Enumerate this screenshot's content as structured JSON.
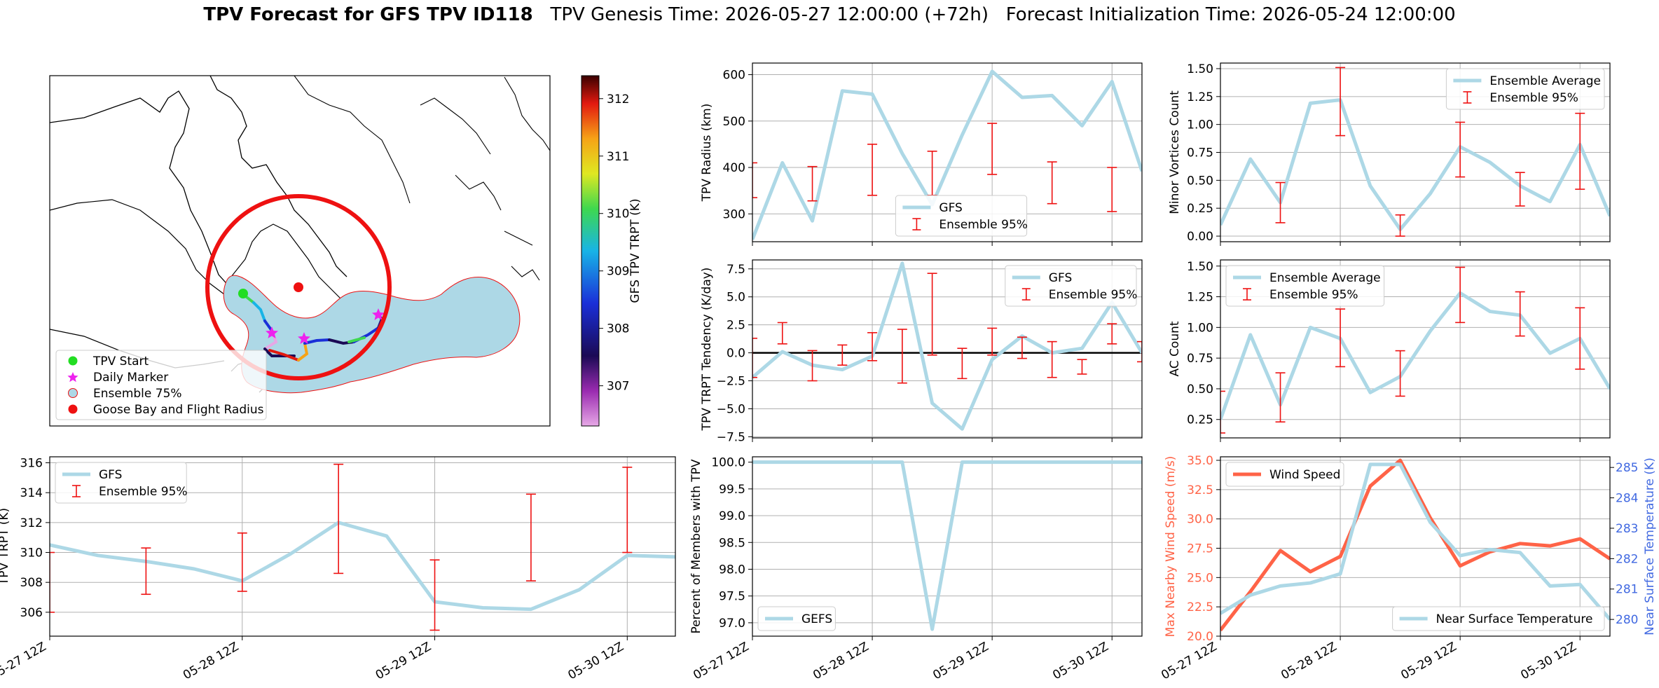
{
  "title": {
    "bold": "TPV Forecast for GFS TPV ID118",
    "genesis": "TPV Genesis Time: 2026-05-27 12:00:00 (+72h)",
    "init": "Forecast Initialization Time: 2026-05-24 12:00:00"
  },
  "map": {
    "legend": [
      "TPV Start",
      "Daily Marker",
      "Ensemble 75%",
      "Goose Bay and Flight Radius"
    ],
    "colorbar": {
      "label": "GFS TPV TRPT (K)",
      "ticks": [
        "307",
        "308",
        "309",
        "310",
        "311",
        "312"
      ],
      "range": [
        306.3,
        312.4
      ]
    },
    "colors": {
      "start": "#22dd22",
      "marker": "#ee22ee",
      "ensemble": "#add8e6",
      "radius": "#ee1111"
    }
  },
  "x_ticks": [
    "05-27 12Z",
    "05-28 12Z",
    "05-29 12Z",
    "05-30 12Z"
  ],
  "chart_data": [
    {
      "id": "radius",
      "type": "line",
      "ylabel": "TPV Radius (km)",
      "ylim": [
        240,
        625
      ],
      "yticks": [
        "300",
        "400",
        "500",
        "600"
      ],
      "x": [
        0,
        0.25,
        0.5,
        0.75,
        1,
        1.25,
        1.5,
        1.75,
        2,
        2.25,
        2.5,
        2.75,
        3,
        3.25
      ],
      "series": [
        {
          "name": "GFS",
          "color": "#add8e6",
          "values": [
            245,
            410,
            285,
            565,
            558,
            430,
            320,
            470,
            607,
            551,
            555,
            490,
            585,
            392
          ]
        }
      ],
      "errorbars": {
        "name": "Ensemble 95%",
        "color": "#ee1111",
        "x": [
          0,
          0.25,
          0.5,
          1,
          1.5,
          2,
          2.5,
          3
        ],
        "low": [
          335,
          0,
          328,
          340,
          340,
          385,
          322,
          305
        ],
        "high": [
          410,
          0,
          402,
          450,
          435,
          495,
          412,
          400
        ]
      },
      "legend": {
        "pos": "lower-center",
        "entries": [
          "GFS",
          "Ensemble 95%"
        ]
      }
    },
    {
      "id": "minor",
      "type": "line",
      "ylabel": "Minor Vortices Count",
      "ylim": [
        -0.05,
        1.55
      ],
      "yticks": [
        "0.00",
        "0.25",
        "0.50",
        "0.75",
        "1.00",
        "1.25",
        "1.50"
      ],
      "x": [
        0,
        0.25,
        0.5,
        0.75,
        1,
        1.25,
        1.5,
        1.75,
        2,
        2.25,
        2.5,
        2.75,
        3,
        3.25
      ],
      "series": [
        {
          "name": "Ensemble Average",
          "color": "#add8e6",
          "values": [
            0.1,
            0.69,
            0.3,
            1.19,
            1.22,
            0.45,
            0.06,
            0.38,
            0.8,
            0.66,
            0.45,
            0.31,
            0.82,
            0.18
          ]
        }
      ],
      "errorbars": {
        "name": "Ensemble 95%",
        "color": "#ee1111",
        "x": [
          0.5,
          1,
          1.5,
          2,
          2.5,
          3
        ],
        "low": [
          0.12,
          0.9,
          0.0,
          0.53,
          0.27,
          0.42
        ],
        "high": [
          0.48,
          1.51,
          0.19,
          1.02,
          0.57,
          1.1
        ]
      },
      "legend": {
        "pos": "top-right",
        "entries": [
          "Ensemble Average",
          "Ensemble 95%"
        ]
      }
    },
    {
      "id": "tend",
      "type": "line",
      "ylabel": "TPV TRPT Tendency (K/day)",
      "ylim": [
        -7.6,
        8.3
      ],
      "yticks": [
        "−7.5",
        "−5.0",
        "−2.5",
        "0.0",
        "2.5",
        "5.0",
        "7.5"
      ],
      "zero_line": true,
      "x": [
        0,
        0.25,
        0.5,
        0.75,
        1,
        1.25,
        1.5,
        1.75,
        2,
        2.25,
        2.5,
        2.75,
        3,
        3.25
      ],
      "series": [
        {
          "name": "GFS",
          "color": "#add8e6",
          "values": [
            -2.2,
            0.1,
            -1.1,
            -1.5,
            -0.3,
            8.0,
            -4.5,
            -6.8,
            -0.6,
            1.5,
            0.0,
            0.4,
            4.5,
            0.0
          ]
        }
      ],
      "errorbars": {
        "name": "Ensemble 95%",
        "color": "#ee1111",
        "x": [
          0,
          0.25,
          0.5,
          0.75,
          1,
          1.25,
          1.5,
          1.75,
          2,
          2.25,
          2.5,
          2.75,
          3,
          3.25
        ],
        "low": [
          -2.2,
          0.8,
          -2.5,
          -1.1,
          -0.7,
          -2.7,
          -0.2,
          -2.3,
          -0.2,
          -0.5,
          -2.2,
          -1.9,
          0.8,
          -0.8
        ],
        "high": [
          1.3,
          2.7,
          0.2,
          0.7,
          1.8,
          2.1,
          7.1,
          0.4,
          2.2,
          1.4,
          1.0,
          -0.6,
          2.6,
          1.0
        ]
      },
      "legend": {
        "pos": "top-right",
        "entries": [
          "GFS",
          "Ensemble 95%"
        ]
      }
    },
    {
      "id": "ac",
      "type": "line",
      "ylabel": "AC Count",
      "ylim": [
        0.1,
        1.55
      ],
      "yticks": [
        "0.25",
        "0.50",
        "0.75",
        "1.00",
        "1.25",
        "1.50"
      ],
      "x": [
        0,
        0.25,
        0.5,
        0.75,
        1,
        1.25,
        1.5,
        1.75,
        2,
        2.25,
        2.5,
        2.75,
        3,
        3.25
      ],
      "series": [
        {
          "name": "Ensemble Average",
          "color": "#add8e6",
          "values": [
            0.25,
            0.94,
            0.37,
            1.0,
            0.91,
            0.47,
            0.6,
            0.97,
            1.28,
            1.13,
            1.1,
            0.79,
            0.91,
            0.5
          ]
        }
      ],
      "errorbars": {
        "name": "Ensemble 95%",
        "color": "#ee1111",
        "x": [
          0,
          0.5,
          1,
          1.5,
          2,
          2.5,
          3
        ],
        "low": [
          0.14,
          0.23,
          0.68,
          0.44,
          1.04,
          0.93,
          0.66
        ],
        "high": [
          0.48,
          0.63,
          1.15,
          0.81,
          1.49,
          1.29,
          1.16
        ]
      },
      "legend": {
        "pos": "top-left",
        "entries": [
          "Ensemble Average",
          "Ensemble 95%"
        ]
      }
    },
    {
      "id": "trpt",
      "type": "line",
      "ylabel": "TPV TRPT (K)",
      "ylim": [
        304.4,
        316.4
      ],
      "yticks": [
        "306",
        "308",
        "310",
        "312",
        "314",
        "316"
      ],
      "x": [
        0,
        0.25,
        0.5,
        0.75,
        1,
        1.25,
        1.5,
        1.75,
        2,
        2.25,
        2.5,
        2.75,
        3,
        3.25
      ],
      "series": [
        {
          "name": "GFS",
          "color": "#add8e6",
          "values": [
            310.5,
            309.8,
            309.4,
            308.9,
            308.1,
            309.9,
            312.0,
            311.1,
            306.7,
            306.3,
            306.2,
            307.5,
            309.8,
            309.7
          ]
        }
      ],
      "errorbars": {
        "name": "Ensemble 95%",
        "color": "#ee1111",
        "x": [
          0,
          0.5,
          1,
          1.5,
          2,
          2.5,
          3
        ],
        "low": [
          306.0,
          307.2,
          307.4,
          308.6,
          304.8,
          308.1,
          310.0
        ],
        "high": [
          310.0,
          310.3,
          311.3,
          315.9,
          309.5,
          313.9,
          315.7
        ]
      },
      "legend": {
        "pos": "top-left",
        "entries": [
          "GFS",
          "Ensemble 95%"
        ]
      }
    },
    {
      "id": "pct",
      "type": "line",
      "ylabel": "Percent of Members with TPV",
      "ylim": [
        96.75,
        100.1
      ],
      "yticks": [
        "97.0",
        "97.5",
        "98.0",
        "98.5",
        "99.0",
        "99.5",
        "100.0"
      ],
      "x": [
        0,
        0.25,
        0.5,
        0.75,
        1,
        1.25,
        1.5,
        1.75,
        2,
        2.25,
        2.5,
        2.75,
        3,
        3.25
      ],
      "series": [
        {
          "name": "GEFS",
          "color": "#add8e6",
          "values": [
            100,
            100,
            100,
            100,
            100,
            100,
            96.88,
            100,
            100,
            100,
            100,
            100,
            100,
            100
          ]
        }
      ],
      "legend": {
        "pos": "bottom-left",
        "entries": [
          "GEFS"
        ]
      }
    },
    {
      "id": "wind",
      "type": "line",
      "ylabel": "Max Nearby Wind Speed (m/s)",
      "ylim": [
        20,
        35.3
      ],
      "yticks": [
        "20.0",
        "22.5",
        "25.0",
        "27.5",
        "30.0",
        "32.5",
        "35.0"
      ],
      "y2label": "Near Surface Temperature (K)",
      "y2lim": [
        279.45,
        285.35
      ],
      "y2ticks": [
        "280",
        "281",
        "282",
        "283",
        "284",
        "285"
      ],
      "x": [
        0,
        0.25,
        0.5,
        0.75,
        1,
        1.25,
        1.5,
        1.75,
        2,
        2.25,
        2.5,
        2.75,
        3,
        3.25
      ],
      "series": [
        {
          "name": "Wind Speed",
          "color": "#ff6347",
          "axis": "left",
          "values": [
            20.5,
            23.8,
            27.3,
            25.5,
            26.8,
            32.8,
            35.0,
            30.1,
            26.0,
            27.2,
            27.9,
            27.7,
            28.3,
            26.6
          ]
        },
        {
          "name": "Near Surface Temperature",
          "color": "#add8e6",
          "axis": "right",
          "values": [
            280.2,
            280.8,
            281.1,
            281.2,
            281.5,
            285.1,
            285.1,
            283.2,
            282.1,
            282.3,
            282.2,
            281.1,
            281.15,
            280.0
          ]
        }
      ],
      "legend": {
        "pos": "top-left",
        "entries": [
          "Wind Speed"
        ]
      },
      "legend2": {
        "pos": "bottom-right",
        "entries": [
          "Near Surface Temperature"
        ]
      }
    }
  ]
}
